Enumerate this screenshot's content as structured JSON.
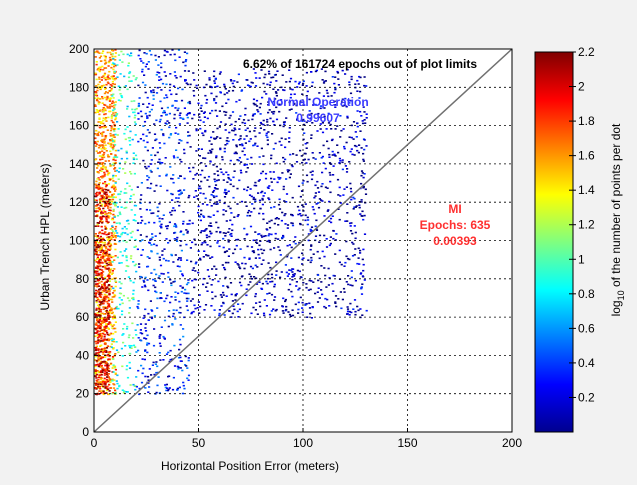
{
  "chart_data": {
    "type": "scatter",
    "subtype": "density-heatmap",
    "xlabel": "Horizontal Position Error (meters)",
    "ylabel": "Urban Trench HPL (meters)",
    "xlim": [
      0,
      200
    ],
    "ylim": [
      0,
      200
    ],
    "xticks": [
      0,
      50,
      100,
      150,
      200
    ],
    "yticks": [
      0,
      20,
      40,
      60,
      80,
      100,
      120,
      140,
      160,
      180,
      200
    ],
    "grid": true,
    "reference_line": {
      "x": [
        0,
        200
      ],
      "y": [
        0,
        200
      ]
    },
    "colorbar": {
      "label_prefix": "log",
      "label_subscript": "10",
      "label_suffix": " of the number of points per dot",
      "range": [
        0,
        2.2
      ],
      "ticks": [
        0.2,
        0.4,
        0.6,
        0.8,
        1,
        1.2,
        1.4,
        1.6,
        1.8,
        2,
        2.2
      ],
      "colormap": "jet"
    },
    "density_bands": [
      {
        "x_range": [
          0,
          10
        ],
        "y_range": [
          20,
          200
        ],
        "log10_density": 1.6
      },
      {
        "x_range": [
          0,
          7
        ],
        "y_range": [
          20,
          130
        ],
        "log10_density": 2.0
      },
      {
        "x_range": [
          8,
          20
        ],
        "y_range": [
          20,
          200
        ],
        "log10_density": 0.9
      },
      {
        "x_range": [
          20,
          45
        ],
        "y_range": [
          20,
          200
        ],
        "log10_density": 0.3
      },
      {
        "x_range": [
          45,
          130
        ],
        "y_range": [
          60,
          190
        ],
        "log10_density": 0.1
      }
    ],
    "annotations": {
      "out_of_limits": "6.62% of 161724 epochs out of plot limits",
      "normal_operation_label": "Normal Operation",
      "normal_operation_value": "0.99607",
      "mi_label": "MI",
      "mi_epochs": "Epochs: 635",
      "mi_value": "0.00393"
    },
    "colors": {
      "normal_text": "#3a3aff",
      "mi_text": "#ff3030",
      "diagonal": "#707070"
    }
  }
}
